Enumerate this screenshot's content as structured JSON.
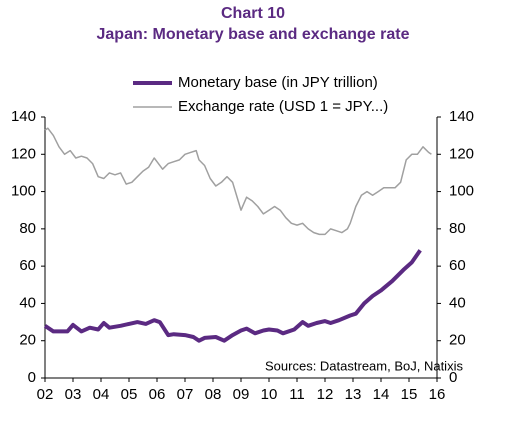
{
  "chart_data": {
    "type": "line",
    "title": "Chart 10",
    "subtitle": "Japan: Monetary base and exchange rate",
    "annotation": "Sources: Datastream, BoJ, Natixis",
    "series": [
      {
        "name": "Monetary base (in JPY trillion)",
        "color": "#5b2a82",
        "axis": "y",
        "x": [
          2.0,
          2.3,
          2.8,
          3.0,
          3.3,
          3.6,
          3.9,
          4.1,
          4.3,
          4.7,
          5.0,
          5.3,
          5.6,
          5.9,
          6.1,
          6.4,
          6.6,
          7.0,
          7.3,
          7.5,
          7.7,
          8.1,
          8.4,
          8.7,
          9.0,
          9.2,
          9.5,
          9.8,
          10.0,
          10.3,
          10.5,
          10.9,
          11.2,
          11.4,
          11.7,
          12.0,
          12.2,
          12.5,
          12.9,
          13.1,
          13.4,
          13.7,
          14.0,
          14.4,
          14.8,
          15.1,
          15.4
        ],
        "values": [
          28,
          25,
          25,
          28.5,
          25,
          27,
          26,
          29.5,
          27,
          28,
          29,
          30,
          29,
          31,
          30,
          23,
          23.5,
          23,
          22,
          20,
          21.5,
          22,
          20,
          23,
          25.5,
          26.5,
          24,
          25.5,
          26,
          25.5,
          24,
          26,
          30,
          28,
          29.5,
          30.5,
          29.5,
          31,
          33.5,
          34.5,
          40,
          44,
          47,
          52,
          58,
          62,
          68.5
        ]
      },
      {
        "name": "Exchange rate (USD 1 = JPY...)",
        "color": "#a0a0a0",
        "axis": "y2",
        "x": [
          2.0,
          2.1,
          2.3,
          2.5,
          2.7,
          2.9,
          3.1,
          3.3,
          3.5,
          3.7,
          3.9,
          4.1,
          4.3,
          4.5,
          4.7,
          4.9,
          5.1,
          5.3,
          5.5,
          5.7,
          5.9,
          6.0,
          6.2,
          6.4,
          6.6,
          6.8,
          7.0,
          7.2,
          7.4,
          7.5,
          7.7,
          7.9,
          8.1,
          8.3,
          8.5,
          8.7,
          8.9,
          9.0,
          9.2,
          9.4,
          9.6,
          9.8,
          10.0,
          10.2,
          10.4,
          10.6,
          10.8,
          11.0,
          11.2,
          11.4,
          11.6,
          11.8,
          12.0,
          12.2,
          12.4,
          12.6,
          12.8,
          12.9,
          13.1,
          13.3,
          13.5,
          13.7,
          13.9,
          14.1,
          14.3,
          14.5,
          14.7,
          14.9,
          15.1,
          15.3,
          15.5,
          15.7,
          15.8
        ],
        "values": [
          133,
          134,
          130,
          124,
          120,
          122,
          118,
          119,
          118,
          115,
          108,
          107,
          110,
          109,
          110,
          104,
          105,
          108,
          111,
          113,
          118,
          116,
          112,
          115,
          116,
          117,
          120,
          121,
          122,
          117,
          114,
          107,
          103,
          105,
          108,
          105,
          95,
          90,
          97,
          95,
          92,
          88,
          90,
          92,
          90,
          86,
          83,
          82,
          83,
          80,
          78,
          77,
          77,
          80,
          79,
          78,
          80,
          83,
          92,
          98,
          100,
          98,
          100,
          102,
          102,
          102,
          105,
          117,
          120,
          120,
          124,
          121,
          120
        ]
      }
    ],
    "xlim": [
      2,
      16
    ],
    "xticks": [
      {
        "value": 2,
        "label": "02"
      },
      {
        "value": 3,
        "label": "03"
      },
      {
        "value": 4,
        "label": "04"
      },
      {
        "value": 5,
        "label": "05"
      },
      {
        "value": 6,
        "label": "06"
      },
      {
        "value": 7,
        "label": "07"
      },
      {
        "value": 8,
        "label": "08"
      },
      {
        "value": 9,
        "label": "09"
      },
      10,
      11,
      12,
      13,
      14,
      15,
      16
    ],
    "ylim": [
      0,
      140
    ],
    "yticks": [
      0,
      20,
      40,
      60,
      80,
      100,
      120,
      140
    ],
    "y2lim": [
      0,
      140
    ],
    "y2ticks": [
      0,
      20,
      40,
      60,
      80,
      100,
      120,
      140
    ]
  }
}
